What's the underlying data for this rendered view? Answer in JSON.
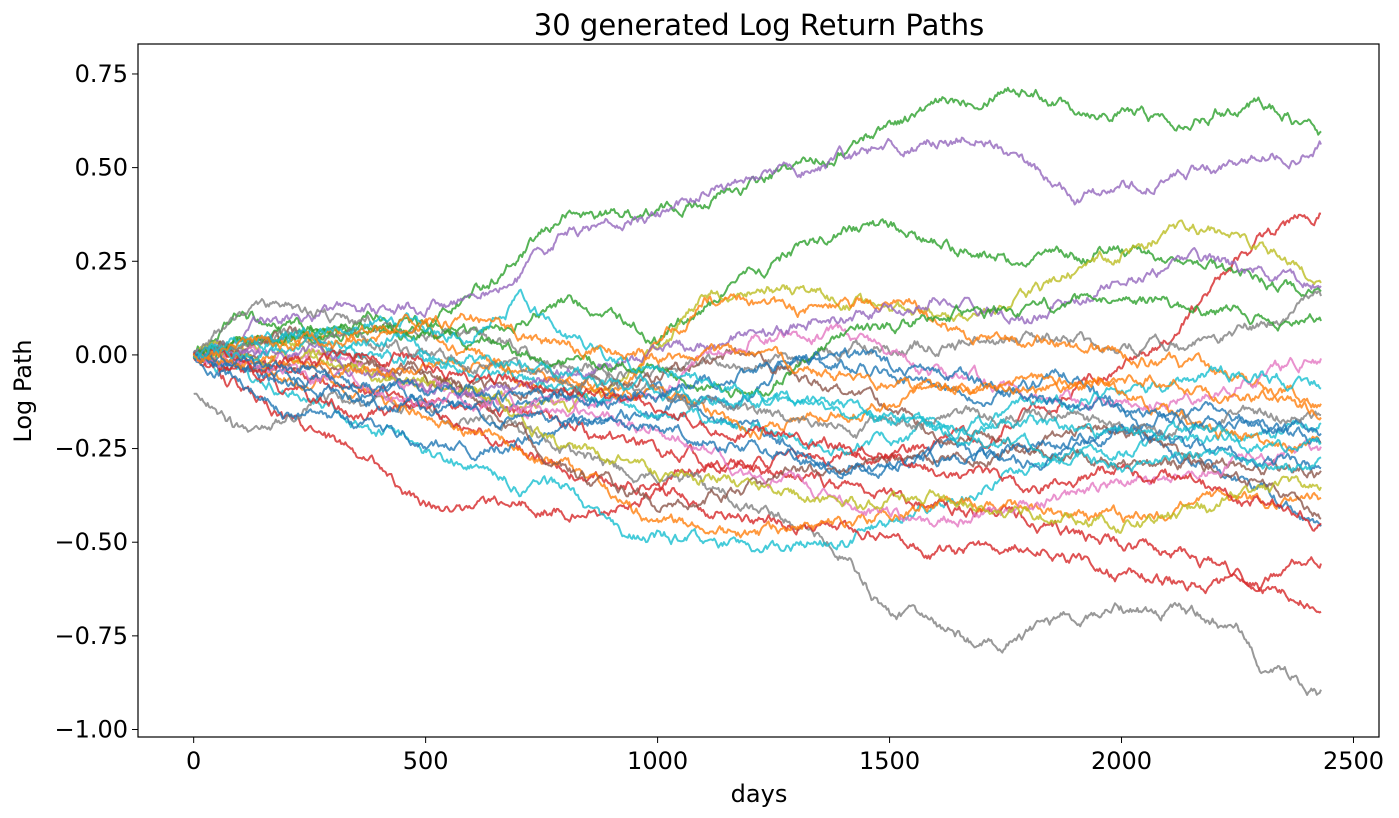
{
  "chart_data": {
    "type": "line",
    "title": "30 generated Log Return Paths",
    "xlabel": "days",
    "ylabel": "Log Path",
    "xlim": [
      -120,
      2555
    ],
    "ylim": [
      -1.02,
      0.83
    ],
    "xticks": [
      0,
      500,
      1000,
      1500,
      2000,
      2500
    ],
    "yticks": [
      0.75,
      0.5,
      0.25,
      0.0,
      -0.25,
      -0.5,
      -0.75,
      -1.0
    ],
    "xtick_labels": [
      "0",
      "500",
      "1000",
      "1500",
      "2000",
      "2500"
    ],
    "ytick_labels": [
      "0.75",
      "0.50",
      "0.25",
      "0.00",
      "−0.25",
      "−0.50",
      "−0.75",
      "−1.00"
    ],
    "grid": false,
    "legend": "none",
    "n_points": 2432,
    "series_note": "30 random-walk paths; values approximated at anchor days",
    "series": [
      {
        "color": "#2ca02c",
        "x": [
          0,
          100,
          300,
          500,
          700,
          800,
          1000,
          1200,
          1400,
          1500,
          1700,
          1750,
          1900,
          2100,
          2300,
          2431
        ],
        "y": [
          0,
          0.1,
          0.05,
          0.08,
          0.25,
          0.37,
          0.38,
          0.45,
          0.55,
          0.62,
          0.7,
          0.73,
          0.67,
          0.63,
          0.68,
          0.59
        ]
      },
      {
        "color": "#9467bd",
        "x": [
          0,
          200,
          500,
          700,
          800,
          1000,
          1200,
          1400,
          1600,
          1700,
          1800,
          1900,
          2000,
          2200,
          2431
        ],
        "y": [
          0,
          0.1,
          0.13,
          0.2,
          0.33,
          0.38,
          0.47,
          0.52,
          0.57,
          0.6,
          0.5,
          0.41,
          0.44,
          0.5,
          0.56
        ]
      },
      {
        "color": "#d62728",
        "x": [
          0,
          200,
          400,
          500,
          700,
          900,
          1100,
          1300,
          1500,
          1700,
          1900,
          2100,
          2300,
          2431
        ],
        "y": [
          0,
          -0.18,
          -0.3,
          -0.4,
          -0.4,
          -0.42,
          -0.3,
          -0.28,
          -0.27,
          -0.22,
          -0.1,
          0.05,
          0.3,
          0.39
        ]
      },
      {
        "color": "#2ca02c",
        "x": [
          0,
          200,
          400,
          600,
          800,
          1000,
          1200,
          1300,
          1450,
          1600,
          1800,
          2000,
          2200,
          2431
        ],
        "y": [
          0,
          0.05,
          0.1,
          0.05,
          0.15,
          0.05,
          0.2,
          0.28,
          0.35,
          0.3,
          0.25,
          0.28,
          0.22,
          0.16
        ]
      },
      {
        "color": "#bcbd22",
        "x": [
          0,
          200,
          400,
          600,
          800,
          1000,
          1100,
          1300,
          1500,
          1700,
          1900,
          2000,
          2150,
          2300,
          2431
        ],
        "y": [
          0,
          0.03,
          -0.05,
          -0.1,
          -0.15,
          0.02,
          0.15,
          0.18,
          0.12,
          0.1,
          0.22,
          0.27,
          0.35,
          0.3,
          0.21
        ]
      },
      {
        "color": "#7f7f7f",
        "x": [
          0,
          100,
          300,
          500,
          700,
          900,
          1100,
          1300,
          1400,
          1500,
          1600,
          1700,
          1900,
          2100,
          2250,
          2300,
          2431
        ],
        "y": [
          -0.1,
          -0.2,
          -0.12,
          -0.15,
          -0.2,
          -0.3,
          -0.35,
          -0.45,
          -0.52,
          -0.7,
          -0.72,
          -0.78,
          -0.7,
          -0.68,
          -0.72,
          -0.82,
          -0.9
        ]
      },
      {
        "color": "#7f7f7f",
        "x": [
          0,
          150,
          400,
          600,
          900,
          1200,
          1500,
          1800,
          2000,
          2200,
          2431
        ],
        "y": [
          0,
          0.15,
          0.08,
          0.05,
          -0.05,
          -0.02,
          0.02,
          0.05,
          0.02,
          0.05,
          0.14
        ]
      },
      {
        "color": "#17becf",
        "x": [
          0,
          200,
          400,
          600,
          700,
          800,
          900,
          1000,
          1200,
          1400,
          1600,
          1800,
          2000,
          2200,
          2431
        ],
        "y": [
          0,
          -0.1,
          -0.2,
          -0.3,
          -0.35,
          -0.35,
          -0.48,
          -0.48,
          -0.52,
          -0.5,
          -0.4,
          -0.3,
          -0.25,
          -0.22,
          -0.18
        ]
      },
      {
        "color": "#d62728",
        "x": [
          0,
          200,
          400,
          600,
          800,
          1000,
          1200,
          1400,
          1600,
          1800,
          2000,
          2200,
          2300,
          2431
        ],
        "y": [
          0,
          -0.05,
          -0.1,
          -0.2,
          -0.3,
          -0.35,
          -0.45,
          -0.45,
          -0.52,
          -0.5,
          -0.58,
          -0.62,
          -0.6,
          -0.53
        ]
      },
      {
        "color": "#d62728",
        "x": [
          0,
          200,
          400,
          600,
          800,
          1000,
          1200,
          1400,
          1600,
          1800,
          2000,
          2200,
          2300,
          2400,
          2431
        ],
        "y": [
          0,
          -0.1,
          -0.15,
          -0.12,
          -0.2,
          -0.25,
          -0.3,
          -0.35,
          -0.4,
          -0.45,
          -0.5,
          -0.55,
          -0.62,
          -0.65,
          -0.66
        ]
      },
      {
        "color": "#ff7f0e",
        "x": [
          0,
          200,
          500,
          700,
          900,
          1100,
          1300,
          1500,
          1700,
          1800,
          2000,
          2200,
          2431
        ],
        "y": [
          0,
          0.05,
          0.05,
          -0.05,
          -0.1,
          0.15,
          0.12,
          0.15,
          0.05,
          0.05,
          0,
          -0.05,
          -0.12
        ]
      },
      {
        "color": "#ff7f0e",
        "x": [
          0,
          200,
          400,
          600,
          800,
          1000,
          1200,
          1400,
          1600,
          1800,
          2000,
          2200,
          2431
        ],
        "y": [
          0,
          -0.05,
          -0.1,
          -0.2,
          -0.3,
          -0.45,
          -0.48,
          -0.45,
          -0.4,
          -0.42,
          -0.44,
          -0.4,
          -0.38
        ]
      },
      {
        "color": "#1f77b4",
        "x": [
          0,
          200,
          400,
          600,
          800,
          1000,
          1200,
          1300,
          1500,
          1700,
          1900,
          2100,
          2300,
          2431
        ],
        "y": [
          0,
          -0.15,
          -0.2,
          -0.25,
          -0.2,
          -0.15,
          -0.1,
          0,
          -0.05,
          -0.1,
          -0.05,
          -0.25,
          -0.35,
          -0.47
        ]
      },
      {
        "color": "#1f77b4",
        "x": [
          0,
          200,
          400,
          600,
          800,
          1000,
          1200,
          1400,
          1600,
          1800,
          2000,
          2200,
          2431
        ],
        "y": [
          0,
          -0.05,
          -0.1,
          -0.15,
          -0.12,
          -0.1,
          -0.2,
          -0.3,
          -0.25,
          -0.3,
          -0.2,
          -0.15,
          -0.2
        ]
      },
      {
        "color": "#8c564b",
        "x": [
          0,
          200,
          400,
          600,
          800,
          1000,
          1200,
          1400,
          1600,
          1800,
          2000,
          2200,
          2431
        ],
        "y": [
          0,
          0.05,
          0,
          -0.1,
          -0.3,
          -0.4,
          -0.35,
          -0.3,
          -0.28,
          -0.25,
          -0.28,
          -0.3,
          -0.42
        ]
      },
      {
        "color": "#8c564b",
        "x": [
          0,
          200,
          400,
          600,
          800,
          1000,
          1200,
          1400,
          1600,
          1800,
          2000,
          2200,
          2431
        ],
        "y": [
          0,
          -0.02,
          -0.05,
          -0.08,
          -0.1,
          -0.05,
          0,
          -0.1,
          -0.2,
          -0.25,
          -0.2,
          -0.3,
          -0.32
        ]
      },
      {
        "color": "#e377c2",
        "x": [
          0,
          200,
          400,
          600,
          800,
          1000,
          1200,
          1400,
          1600,
          1800,
          2000,
          2200,
          2431
        ],
        "y": [
          0,
          0.02,
          -0.05,
          -0.1,
          -0.15,
          -0.1,
          0.05,
          0.05,
          -0.05,
          -0.1,
          -0.15,
          -0.1,
          0
        ]
      },
      {
        "color": "#e377c2",
        "x": [
          0,
          200,
          400,
          600,
          800,
          1000,
          1200,
          1400,
          1600,
          1800,
          2000,
          2200,
          2431
        ],
        "y": [
          0,
          -0.05,
          -0.1,
          -0.12,
          -0.15,
          -0.2,
          -0.3,
          -0.4,
          -0.45,
          -0.4,
          -0.35,
          -0.3,
          -0.25
        ]
      },
      {
        "color": "#bcbd22",
        "x": [
          0,
          200,
          400,
          600,
          800,
          1000,
          1200,
          1400,
          1600,
          1800,
          2000,
          2200,
          2431
        ],
        "y": [
          0,
          0,
          -0.05,
          -0.1,
          -0.25,
          -0.3,
          -0.35,
          -0.4,
          -0.38,
          -0.42,
          -0.45,
          -0.4,
          -0.35
        ]
      },
      {
        "color": "#17becf",
        "x": [
          0,
          200,
          400,
          600,
          800,
          1000,
          1200,
          1400,
          1600,
          1800,
          2000,
          2200,
          2431
        ],
        "y": [
          0,
          0.05,
          0,
          -0.05,
          -0.1,
          -0.15,
          -0.2,
          -0.25,
          -0.2,
          -0.15,
          -0.1,
          -0.05,
          -0.08
        ]
      },
      {
        "color": "#9467bd",
        "x": [
          0,
          200,
          400,
          600,
          800,
          1000,
          1200,
          1400,
          1600,
          1800,
          2000,
          2200,
          2431
        ],
        "y": [
          0,
          0.02,
          -0.05,
          -0.1,
          -0.05,
          0,
          0.05,
          0.1,
          0.15,
          0.1,
          0.2,
          0.25,
          0.18
        ]
      },
      {
        "color": "#1f77b4",
        "x": [
          0,
          200,
          400,
          600,
          800,
          1000,
          1200,
          1400,
          1600,
          1800,
          2000,
          2200,
          2431
        ],
        "y": [
          0,
          -0.08,
          -0.12,
          -0.15,
          -0.18,
          -0.2,
          -0.25,
          -0.3,
          -0.28,
          -0.25,
          -0.2,
          -0.25,
          -0.3
        ]
      },
      {
        "color": "#2ca02c",
        "x": [
          0,
          200,
          400,
          600,
          800,
          1000,
          1200,
          1400,
          1600,
          1800,
          2000,
          2200,
          2431
        ],
        "y": [
          0,
          0.05,
          0.08,
          0.03,
          0,
          -0.05,
          -0.1,
          0.05,
          0.1,
          0.12,
          0.15,
          0.12,
          0.1
        ]
      },
      {
        "color": "#ff7f0e",
        "x": [
          0,
          200,
          400,
          600,
          800,
          1000,
          1200,
          1400,
          1600,
          1800,
          2000,
          2200,
          2431
        ],
        "y": [
          0,
          -0.03,
          -0.05,
          -0.02,
          -0.08,
          -0.1,
          -0.2,
          -0.15,
          -0.1,
          -0.05,
          -0.1,
          -0.2,
          -0.25
        ]
      },
      {
        "color": "#d62728",
        "x": [
          0,
          200,
          400,
          600,
          800,
          1000,
          1200,
          1400,
          1600,
          1800,
          2000,
          2200,
          2431
        ],
        "y": [
          0,
          -0.02,
          0,
          -0.05,
          -0.1,
          -0.15,
          -0.2,
          -0.25,
          -0.3,
          -0.35,
          -0.3,
          -0.35,
          -0.45
        ]
      },
      {
        "color": "#7f7f7f",
        "x": [
          0,
          200,
          400,
          600,
          800,
          1000,
          1200,
          1400,
          1600,
          1800,
          2000,
          2200,
          2431
        ],
        "y": [
          0,
          0.05,
          0.02,
          -0.02,
          -0.05,
          -0.1,
          -0.15,
          -0.2,
          -0.18,
          -0.15,
          -0.2,
          -0.18,
          -0.15
        ]
      },
      {
        "color": "#17becf",
        "x": [
          0,
          200,
          400,
          600,
          800,
          1000,
          1200,
          1400,
          1600,
          1800,
          2000,
          2200,
          2431
        ],
        "y": [
          0,
          0.02,
          0.05,
          0,
          -0.05,
          -0.1,
          -0.12,
          -0.15,
          -0.2,
          -0.25,
          -0.3,
          -0.28,
          -0.3
        ]
      },
      {
        "color": "#1f77b4",
        "x": [
          0,
          200,
          400,
          600,
          800,
          1000,
          1200,
          1400,
          1600,
          1800,
          2000,
          2200,
          2431
        ],
        "y": [
          0,
          -0.05,
          -0.08,
          -0.1,
          -0.12,
          -0.1,
          -0.05,
          0,
          -0.05,
          -0.1,
          -0.15,
          -0.2,
          -0.22
        ]
      },
      {
        "color": "#17becf",
        "x": [
          0,
          200,
          400,
          600,
          700,
          800,
          1000,
          1200,
          1400,
          1600,
          1800,
          2000,
          2200,
          2431
        ],
        "y": [
          0,
          0.05,
          0.1,
          0.05,
          0.15,
          0.05,
          -0.05,
          -0.1,
          -0.15,
          -0.2,
          -0.18,
          -0.2,
          -0.22,
          -0.25
        ]
      },
      {
        "color": "#ff7f0e",
        "x": [
          0,
          200,
          400,
          600,
          800,
          1000,
          1200,
          1400,
          1600,
          1800,
          2000,
          2200,
          2431
        ],
        "y": [
          0,
          0.03,
          0.06,
          0.1,
          0.02,
          0,
          -0.02,
          -0.05,
          -0.08,
          -0.1,
          -0.05,
          -0.1,
          -0.15
        ]
      }
    ]
  }
}
